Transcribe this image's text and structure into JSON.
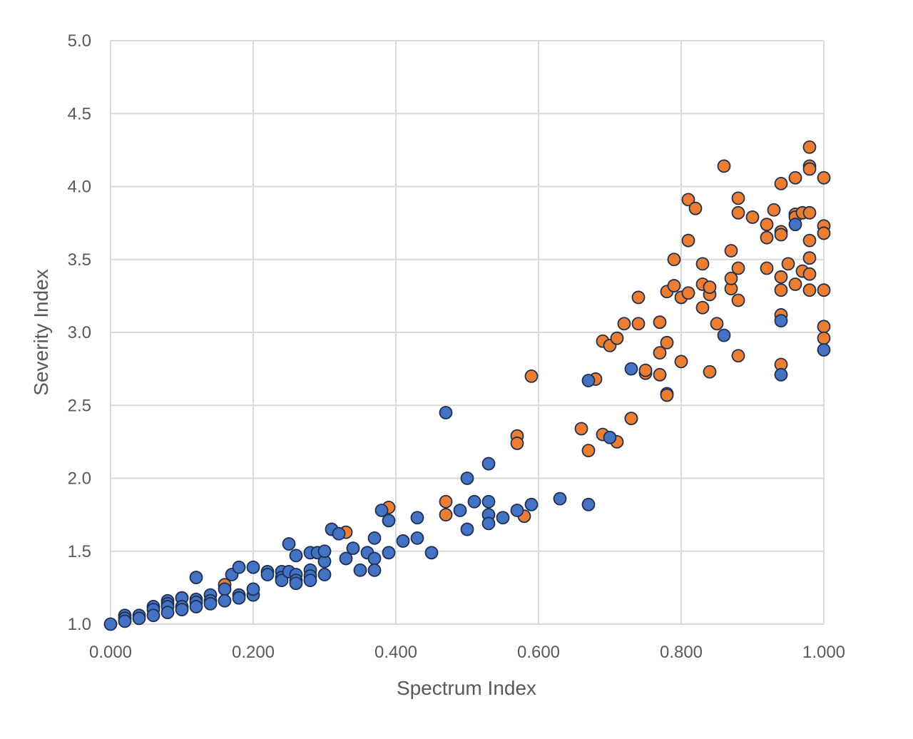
{
  "chart_data": {
    "type": "scatter",
    "title": "",
    "xlabel": "Spectrum Index",
    "ylabel": "Severity Index",
    "xlim": [
      0,
      1
    ],
    "ylim": [
      1,
      5
    ],
    "x_ticks": [
      "0.000",
      "0.200",
      "0.400",
      "0.600",
      "0.800",
      "1.000"
    ],
    "y_ticks": [
      "1.0",
      "1.5",
      "2.0",
      "2.5",
      "3.0",
      "3.5",
      "4.0",
      "4.5",
      "5.0"
    ],
    "grid": true,
    "legend": "none",
    "series": [
      {
        "color": "#ed7d31",
        "points": [
          [
            0.16,
            1.27
          ],
          [
            0.33,
            1.63
          ],
          [
            0.39,
            1.8
          ],
          [
            0.47,
            1.84
          ],
          [
            0.47,
            1.75
          ],
          [
            0.57,
            2.29
          ],
          [
            0.57,
            2.24
          ],
          [
            0.58,
            1.74
          ],
          [
            0.59,
            2.7
          ],
          [
            0.66,
            2.34
          ],
          [
            0.67,
            2.19
          ],
          [
            0.68,
            2.68
          ],
          [
            0.69,
            2.3
          ],
          [
            0.69,
            2.94
          ],
          [
            0.7,
            2.91
          ],
          [
            0.71,
            2.96
          ],
          [
            0.71,
            2.25
          ],
          [
            0.72,
            3.06
          ],
          [
            0.73,
            2.41
          ],
          [
            0.73,
            2.41
          ],
          [
            0.74,
            3.06
          ],
          [
            0.74,
            3.24
          ],
          [
            0.75,
            2.72
          ],
          [
            0.75,
            2.74
          ],
          [
            0.77,
            3.07
          ],
          [
            0.77,
            2.86
          ],
          [
            0.77,
            2.71
          ],
          [
            0.78,
            2.58
          ],
          [
            0.78,
            2.57
          ],
          [
            0.78,
            3.28
          ],
          [
            0.78,
            2.93
          ],
          [
            0.79,
            3.32
          ],
          [
            0.79,
            3.5
          ],
          [
            0.8,
            3.24
          ],
          [
            0.8,
            2.8
          ],
          [
            0.81,
            3.91
          ],
          [
            0.81,
            3.63
          ],
          [
            0.81,
            3.27
          ],
          [
            0.82,
            3.85
          ],
          [
            0.83,
            3.47
          ],
          [
            0.83,
            3.33
          ],
          [
            0.83,
            3.17
          ],
          [
            0.84,
            3.26
          ],
          [
            0.84,
            2.73
          ],
          [
            0.84,
            3.31
          ],
          [
            0.85,
            3.06
          ],
          [
            0.86,
            4.14
          ],
          [
            0.87,
            3.56
          ],
          [
            0.87,
            3.3
          ],
          [
            0.87,
            3.37
          ],
          [
            0.88,
            3.44
          ],
          [
            0.88,
            3.92
          ],
          [
            0.88,
            3.82
          ],
          [
            0.88,
            3.22
          ],
          [
            0.88,
            2.84
          ],
          [
            0.9,
            3.79
          ],
          [
            0.92,
            3.74
          ],
          [
            0.92,
            3.65
          ],
          [
            0.92,
            3.44
          ],
          [
            0.93,
            3.84
          ],
          [
            0.94,
            4.02
          ],
          [
            0.94,
            3.69
          ],
          [
            0.94,
            3.67
          ],
          [
            0.94,
            3.38
          ],
          [
            0.94,
            3.29
          ],
          [
            0.94,
            3.12
          ],
          [
            0.94,
            2.78
          ],
          [
            0.95,
            3.47
          ],
          [
            0.96,
            4.06
          ],
          [
            0.96,
            3.81
          ],
          [
            0.96,
            3.79
          ],
          [
            0.96,
            3.33
          ],
          [
            0.97,
            3.42
          ],
          [
            0.97,
            3.82
          ],
          [
            0.98,
            4.27
          ],
          [
            0.98,
            4.14
          ],
          [
            0.98,
            4.12
          ],
          [
            0.98,
            3.82
          ],
          [
            0.98,
            3.63
          ],
          [
            0.98,
            3.51
          ],
          [
            0.98,
            3.4
          ],
          [
            0.98,
            3.29
          ],
          [
            1.0,
            4.06
          ],
          [
            1.0,
            3.73
          ],
          [
            1.0,
            3.68
          ],
          [
            1.0,
            3.29
          ],
          [
            1.0,
            3.04
          ],
          [
            1.0,
            2.96
          ]
        ]
      },
      {
        "color": "#4472c4",
        "points": [
          [
            0.0,
            1.0
          ],
          [
            0.02,
            1.06
          ],
          [
            0.02,
            1.04
          ],
          [
            0.02,
            1.02
          ],
          [
            0.04,
            1.06
          ],
          [
            0.04,
            1.04
          ],
          [
            0.06,
            1.12
          ],
          [
            0.06,
            1.1
          ],
          [
            0.06,
            1.06
          ],
          [
            0.08,
            1.16
          ],
          [
            0.08,
            1.14
          ],
          [
            0.08,
            1.12
          ],
          [
            0.08,
            1.08
          ],
          [
            0.1,
            1.18
          ],
          [
            0.1,
            1.12
          ],
          [
            0.1,
            1.1
          ],
          [
            0.12,
            1.32
          ],
          [
            0.12,
            1.17
          ],
          [
            0.12,
            1.15
          ],
          [
            0.12,
            1.12
          ],
          [
            0.14,
            1.2
          ],
          [
            0.14,
            1.16
          ],
          [
            0.14,
            1.14
          ],
          [
            0.16,
            1.24
          ],
          [
            0.16,
            1.16
          ],
          [
            0.17,
            1.34
          ],
          [
            0.18,
            1.39
          ],
          [
            0.18,
            1.2
          ],
          [
            0.18,
            1.18
          ],
          [
            0.2,
            1.39
          ],
          [
            0.2,
            1.2
          ],
          [
            0.2,
            1.24
          ],
          [
            0.22,
            1.36
          ],
          [
            0.22,
            1.34
          ],
          [
            0.24,
            1.36
          ],
          [
            0.24,
            1.32
          ],
          [
            0.24,
            1.3
          ],
          [
            0.25,
            1.55
          ],
          [
            0.25,
            1.36
          ],
          [
            0.26,
            1.47
          ],
          [
            0.26,
            1.34
          ],
          [
            0.26,
            1.3
          ],
          [
            0.26,
            1.28
          ],
          [
            0.28,
            1.49
          ],
          [
            0.28,
            1.37
          ],
          [
            0.28,
            1.33
          ],
          [
            0.28,
            1.3
          ],
          [
            0.29,
            1.49
          ],
          [
            0.3,
            1.43
          ],
          [
            0.3,
            1.34
          ],
          [
            0.3,
            1.5
          ],
          [
            0.31,
            1.65
          ],
          [
            0.32,
            1.62
          ],
          [
            0.33,
            1.45
          ],
          [
            0.34,
            1.52
          ],
          [
            0.35,
            1.37
          ],
          [
            0.36,
            1.49
          ],
          [
            0.37,
            1.59
          ],
          [
            0.37,
            1.45
          ],
          [
            0.37,
            1.37
          ],
          [
            0.38,
            1.78
          ],
          [
            0.39,
            1.71
          ],
          [
            0.39,
            1.49
          ],
          [
            0.41,
            1.57
          ],
          [
            0.43,
            1.73
          ],
          [
            0.43,
            1.59
          ],
          [
            0.45,
            1.49
          ],
          [
            0.47,
            2.45
          ],
          [
            0.49,
            1.78
          ],
          [
            0.5,
            2.0
          ],
          [
            0.5,
            1.65
          ],
          [
            0.51,
            1.84
          ],
          [
            0.53,
            2.1
          ],
          [
            0.53,
            1.84
          ],
          [
            0.53,
            1.75
          ],
          [
            0.53,
            1.69
          ],
          [
            0.55,
            1.73
          ],
          [
            0.57,
            1.78
          ],
          [
            0.59,
            1.82
          ],
          [
            0.63,
            1.86
          ],
          [
            0.67,
            2.67
          ],
          [
            0.67,
            1.82
          ],
          [
            0.7,
            2.28
          ],
          [
            0.73,
            2.75
          ],
          [
            0.86,
            2.98
          ],
          [
            0.94,
            3.08
          ],
          [
            0.94,
            2.71
          ],
          [
            0.96,
            3.74
          ],
          [
            1.0,
            2.88
          ]
        ]
      }
    ]
  }
}
